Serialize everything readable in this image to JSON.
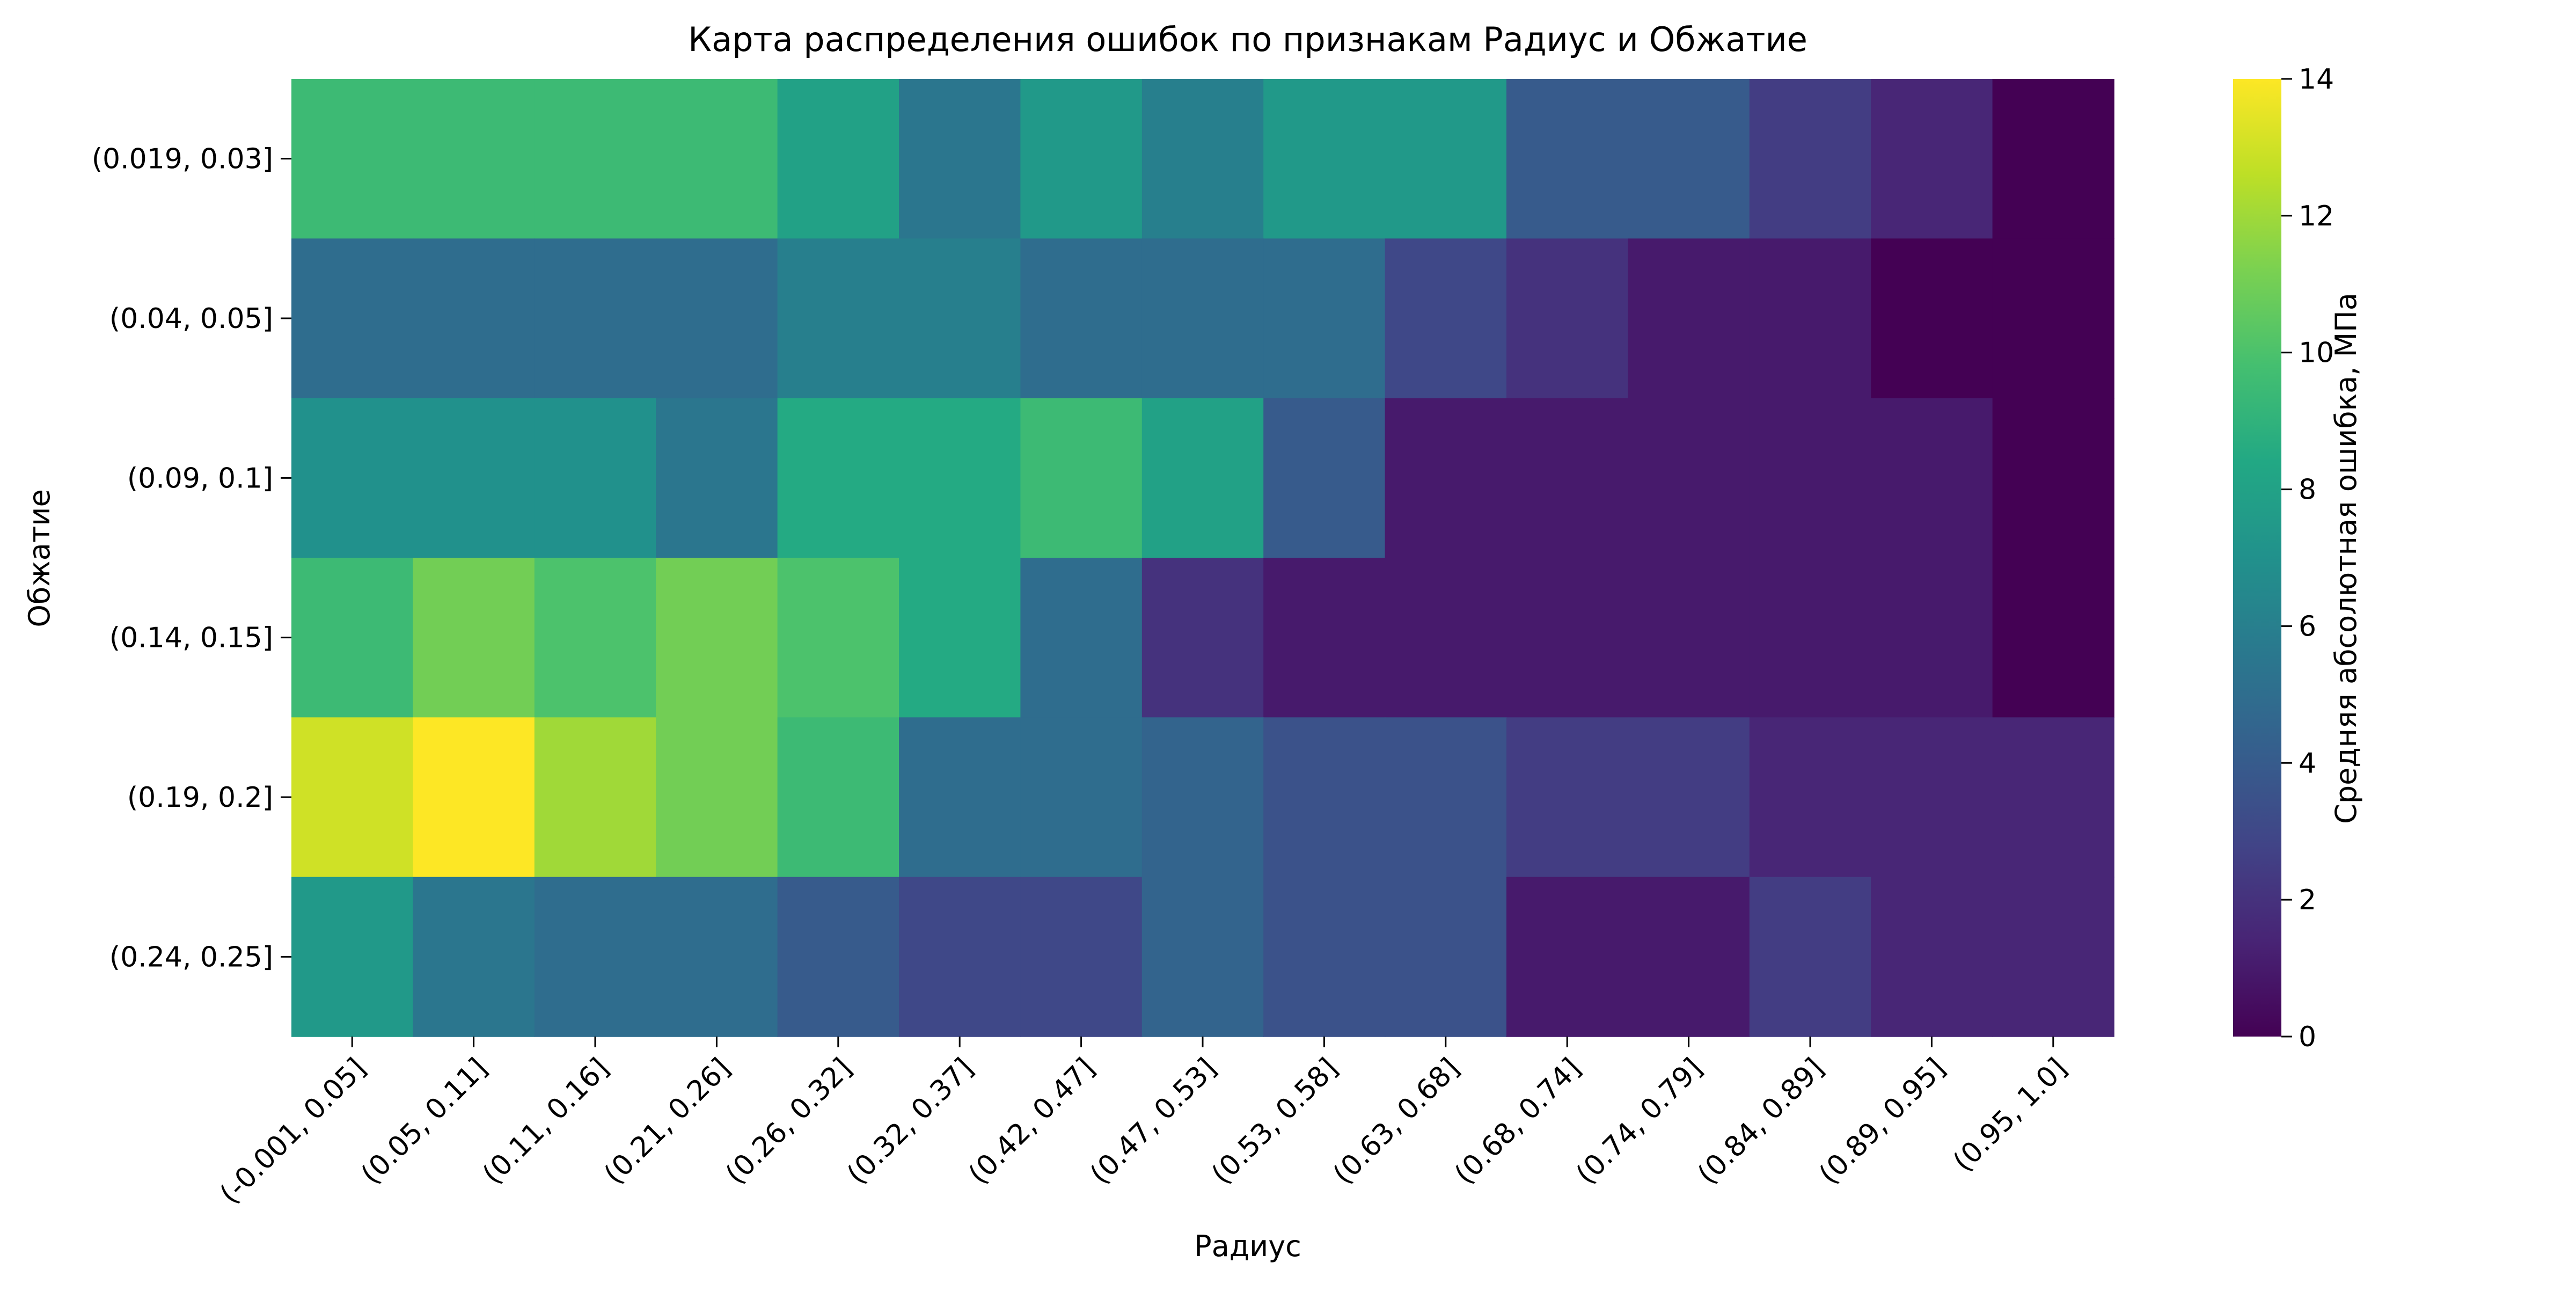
{
  "chart_data": {
    "type": "heatmap",
    "title": "Карта распределения ошибок по признакам Радиус и Обжатие",
    "xlabel": "Радиус",
    "ylabel": "Обжатие",
    "x_categories": [
      "(-0.001, 0.05]",
      "(0.05, 0.11]",
      "(0.11, 0.16]",
      "(0.21, 0.26]",
      "(0.26, 0.32]",
      "(0.32, 0.37]",
      "(0.42, 0.47]",
      "(0.47, 0.53]",
      "(0.53, 0.58]",
      "(0.63, 0.68]",
      "(0.68, 0.74]",
      "(0.74, 0.79]",
      "(0.84, 0.89]",
      "(0.89, 0.95]",
      "(0.95, 1.0]"
    ],
    "y_categories": [
      "(0.019, 0.03]",
      "(0.04, 0.05]",
      "(0.09, 0.1]",
      "(0.14, 0.15]",
      "(0.19, 0.2]",
      "(0.24, 0.25]"
    ],
    "values": [
      [
        9.5,
        9.5,
        9.5,
        9.5,
        8.0,
        5.5,
        7.5,
        6.0,
        7.5,
        7.5,
        4.0,
        4.0,
        2.5,
        1.5,
        0.0
      ],
      [
        5.0,
        5.0,
        5.0,
        5.0,
        6.0,
        6.0,
        5.0,
        5.0,
        5.0,
        3.0,
        2.0,
        1.0,
        1.0,
        0.0,
        0.0
      ],
      [
        7.0,
        7.0,
        7.0,
        5.5,
        8.5,
        8.5,
        9.5,
        8.0,
        4.0,
        1.0,
        1.0,
        1.0,
        1.0,
        1.0,
        0.0
      ],
      [
        9.5,
        11.0,
        10.0,
        11.0,
        10.0,
        8.5,
        5.0,
        2.0,
        1.0,
        1.0,
        1.0,
        1.0,
        1.0,
        1.0,
        0.0
      ],
      [
        13.0,
        14.0,
        12.0,
        11.0,
        9.5,
        5.0,
        5.0,
        4.5,
        3.5,
        3.5,
        2.5,
        2.5,
        1.5,
        1.5,
        1.5
      ],
      [
        7.5,
        5.5,
        5.0,
        5.0,
        4.0,
        3.0,
        3.0,
        4.5,
        3.5,
        3.5,
        1.0,
        1.0,
        2.5,
        1.5,
        1.5
      ]
    ],
    "colorbar": {
      "label": "Средняя абсолютная ошибка, МПа",
      "range": [
        0,
        14
      ],
      "ticks": [
        "0",
        "2",
        "4",
        "6",
        "8",
        "10",
        "12",
        "14"
      ],
      "colormap": "viridis"
    }
  }
}
